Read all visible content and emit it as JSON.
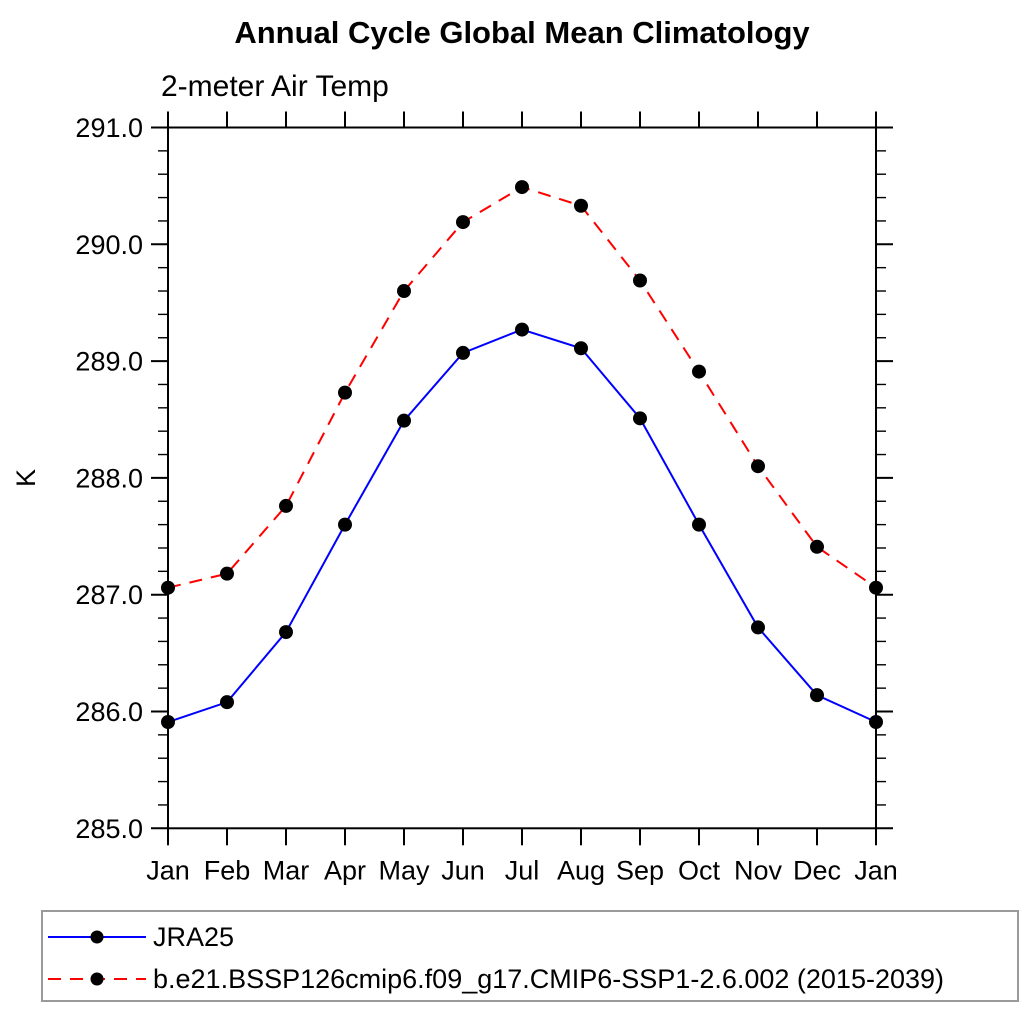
{
  "title": "Annual Cycle Global Mean Climatology",
  "subtitle": "2-meter Air Temp",
  "colors": {
    "jra25_line": "#0000ff",
    "model_line": "#ff0000",
    "marker": "#000000",
    "axis": "#000000",
    "legend_border": "#9a9a9a",
    "background": "#ffffff"
  },
  "chart_data": {
    "type": "line",
    "x_categories": [
      "Jan",
      "Feb",
      "Mar",
      "Apr",
      "May",
      "Jun",
      "Jul",
      "Aug",
      "Sep",
      "Oct",
      "Nov",
      "Dec",
      "Jan"
    ],
    "ylabel": "K",
    "ylim": [
      285.0,
      291.0
    ],
    "y_tick_labels": [
      "285.0",
      "286.0",
      "287.0",
      "288.0",
      "289.0",
      "290.0",
      "291.0"
    ],
    "y_major_ticks": [
      285.0,
      286.0,
      287.0,
      288.0,
      289.0,
      290.0,
      291.0
    ],
    "y_minor_step": 0.2,
    "grid": false,
    "legend_position": "bottom-left-box",
    "series": [
      {
        "name": "JRA25",
        "color": "#0000ff",
        "style": "solid",
        "marker": "circle",
        "marker_color": "#000000",
        "values": [
          285.91,
          286.08,
          286.68,
          287.6,
          288.49,
          289.07,
          289.27,
          289.11,
          288.51,
          287.6,
          286.72,
          286.14,
          285.91
        ]
      },
      {
        "name": "b.e21.BSSP126cmip6.f09_g17.CMIP6-SSP1-2.6.002 (2015-2039)",
        "color": "#ff0000",
        "style": "dashed",
        "marker": "circle",
        "marker_color": "#000000",
        "values": [
          287.06,
          287.18,
          287.76,
          288.73,
          289.6,
          290.19,
          290.49,
          290.33,
          289.69,
          288.91,
          288.1,
          287.41,
          287.06
        ]
      }
    ]
  }
}
